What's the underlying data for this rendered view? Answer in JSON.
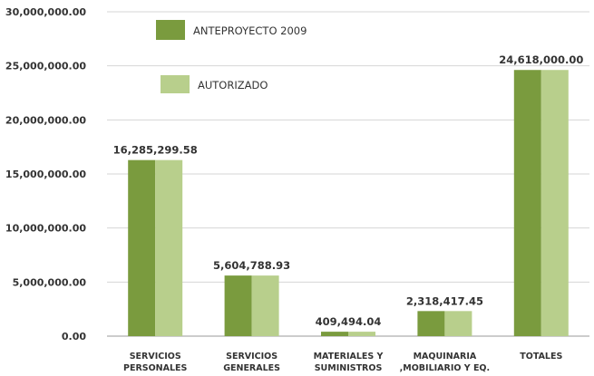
{
  "chart_data": {
    "type": "bar",
    "title": "",
    "xlabel": "",
    "ylabel": "",
    "categories": [
      [
        "SERVICIOS",
        "PERSONALES"
      ],
      [
        "SERVICIOS",
        "GENERALES"
      ],
      [
        "MATERIALES Y",
        "SUMINISTROS"
      ],
      [
        "MAQUINARIA",
        ",MOBILIARIO Y EQ."
      ],
      [
        "TOTALES"
      ]
    ],
    "series": [
      {
        "name": "ANTEPROYECTO 2009",
        "values": [
          16285299.58,
          5604788.93,
          409494.04,
          2318417.45,
          24618000.0
        ]
      },
      {
        "name": "AUTORIZADO",
        "values": [
          16285299.58,
          5604788.93,
          409494.04,
          2318417.45,
          24618000.0
        ]
      }
    ],
    "data_labels": [
      "16,285,299.58",
      "5,604,788.93",
      "409,494.04",
      "2,318,417.45",
      "24,618,000.00"
    ],
    "y_ticks": [
      "0.00",
      "5,000,000.00",
      "10,000,000.00",
      "15,000,000.00",
      "20,000,000.00",
      "25,000,000.00",
      "30,000,000.00"
    ],
    "ylim": [
      0,
      30000000
    ],
    "grid": true,
    "legend_position": "top-left",
    "colors": {
      "series1": "#7a9b3e",
      "series2": "#b8cf8c",
      "grid": "#d6d6d6",
      "axis": "#9a9a9a"
    }
  }
}
